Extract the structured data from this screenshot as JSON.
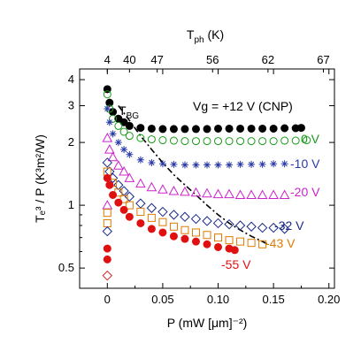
{
  "chart_data": {
    "type": "scatter",
    "annotation": "Vg = +12 V (CNP)",
    "xlabel": "P (mW [μm]⁻²)",
    "ylabel": "Tₑ³ / P (K³m²/W)",
    "x_top_label": "T",
    "x_top_label_sub": "ph",
    "x_top_label_unit": " (K)",
    "xlim": [
      -0.025,
      0.205
    ],
    "ylim": [
      0.4,
      4.5
    ],
    "y_scale": "log",
    "x_ticks": [
      "0",
      "0.05",
      "0.10",
      "0.15",
      "0.20"
    ],
    "x_tick_values": [
      0,
      0.05,
      0.1,
      0.15,
      0.2
    ],
    "y_ticks": [
      "0.5",
      "1",
      "2",
      "3",
      "4"
    ],
    "y_tick_values": [
      0.5,
      1,
      2,
      3,
      4
    ],
    "top_ticks": [
      "4",
      "40",
      "47",
      "56",
      "62",
      "67"
    ],
    "top_tick_positions": [
      0,
      0.02,
      0.045,
      0.095,
      0.145,
      0.195
    ],
    "series": [
      {
        "name": "+12 V",
        "marker": "circle-filled",
        "color": "#000000",
        "x": [
          0,
          0.002,
          0.005,
          0.01,
          0.015,
          0.02,
          0.03,
          0.04,
          0.05,
          0.06,
          0.07,
          0.08,
          0.09,
          0.1,
          0.11,
          0.12,
          0.13,
          0.14,
          0.15,
          0.16,
          0.17,
          0.175
        ],
        "y": [
          3.6,
          3.1,
          2.8,
          2.6,
          2.5,
          2.4,
          2.35,
          2.33,
          2.32,
          2.32,
          2.32,
          2.32,
          2.32,
          2.33,
          2.33,
          2.33,
          2.33,
          2.33,
          2.33,
          2.34,
          2.34,
          2.35
        ]
      },
      {
        "name": "0 V",
        "label": "0 V",
        "marker": "circle-open",
        "color": "#1a9a1a",
        "x": [
          0,
          0.002,
          0.005,
          0.01,
          0.015,
          0.02,
          0.03,
          0.04,
          0.05,
          0.06,
          0.07,
          0.08,
          0.09,
          0.1,
          0.11,
          0.12,
          0.13,
          0.14,
          0.15,
          0.16,
          0.17,
          0.18
        ],
        "y": [
          3.4,
          2.9,
          2.6,
          2.4,
          2.25,
          2.15,
          2.1,
          2.07,
          2.05,
          2.04,
          2.03,
          2.03,
          2.03,
          2.03,
          2.03,
          2.03,
          2.03,
          2.03,
          2.03,
          2.04,
          2.04,
          2.05
        ]
      },
      {
        "name": "-10 V",
        "label": "-10 V",
        "marker": "star",
        "color": "#2a3aa8",
        "x": [
          0,
          0.002,
          0.005,
          0.01,
          0.015,
          0.02,
          0.03,
          0.04,
          0.05,
          0.06,
          0.07,
          0.08,
          0.09,
          0.1,
          0.11,
          0.12,
          0.13,
          0.14,
          0.15,
          0.16
        ],
        "y": [
          2.9,
          2.5,
          2.2,
          2.0,
          1.85,
          1.75,
          1.65,
          1.6,
          1.58,
          1.57,
          1.56,
          1.56,
          1.56,
          1.56,
          1.56,
          1.57,
          1.57,
          1.57,
          1.58,
          1.58
        ]
      },
      {
        "name": "-20 V",
        "label": "-20 V",
        "marker": "triangle-open",
        "color": "#cc22cc",
        "x": [
          0,
          0.002,
          0.005,
          0.01,
          0.015,
          0.02,
          0.03,
          0.04,
          0.05,
          0.06,
          0.07,
          0.08,
          0.09,
          0.1,
          0.11,
          0.12,
          0.13,
          0.14,
          0.15,
          0.16
        ],
        "y": [
          2.1,
          1.85,
          1.7,
          1.55,
          1.45,
          1.35,
          1.27,
          1.22,
          1.19,
          1.17,
          1.16,
          1.15,
          1.14,
          1.13,
          1.13,
          1.12,
          1.12,
          1.12,
          1.12,
          1.12
        ]
      },
      {
        "name": "-32 V",
        "label": "-32 V",
        "marker": "diamond-open",
        "color": "#1a2a88",
        "x": [
          0,
          0.002,
          0.005,
          0.01,
          0.015,
          0.02,
          0.03,
          0.04,
          0.05,
          0.06,
          0.07,
          0.08,
          0.09,
          0.1,
          0.11,
          0.12,
          0.13,
          0.14,
          0.15,
          0.16
        ],
        "y": [
          1.6,
          1.45,
          1.35,
          1.25,
          1.17,
          1.1,
          1.02,
          0.97,
          0.93,
          0.9,
          0.88,
          0.86,
          0.84,
          0.82,
          0.81,
          0.8,
          0.79,
          0.78,
          0.78,
          0.77
        ]
      },
      {
        "name": "-43 V",
        "label": "-43 V",
        "marker": "square-open",
        "color": "#e07a00",
        "x": [
          0,
          0.005,
          0.01,
          0.015,
          0.02,
          0.03,
          0.04,
          0.05,
          0.06,
          0.07,
          0.08,
          0.09,
          0.1,
          0.11,
          0.12,
          0.13,
          0.14
        ],
        "y": [
          1.45,
          1.28,
          1.15,
          1.07,
          1.0,
          0.93,
          0.87,
          0.83,
          0.79,
          0.76,
          0.74,
          0.72,
          0.7,
          0.68,
          0.67,
          0.66,
          0.65
        ]
      },
      {
        "name": "-55 V",
        "label": "-55 V",
        "marker": "circle-filled",
        "color": "#e01010",
        "x": [
          0,
          0.002,
          0.005,
          0.01,
          0.015,
          0.02,
          0.03,
          0.04,
          0.05,
          0.06,
          0.07,
          0.08,
          0.09,
          0.1,
          0.11,
          0.115
        ],
        "y": [
          1.35,
          1.25,
          1.12,
          1.03,
          0.95,
          0.88,
          0.82,
          0.77,
          0.74,
          0.71,
          0.69,
          0.67,
          0.65,
          0.63,
          0.62,
          0.61
        ]
      },
      {
        "name": "",
        "marker": "mixed",
        "color": "#000000",
        "x": [
          0,
          0,
          0,
          0,
          0,
          0,
          0
        ],
        "y": [
          1.0,
          0.92,
          0.82,
          0.75,
          0.62,
          0.55,
          0.46
        ]
      }
    ],
    "t_bg_curve": {
      "label": "T",
      "label_sub": "BG",
      "x": [
        0.01,
        0.02,
        0.03,
        0.04,
        0.05,
        0.06,
        0.07,
        0.08,
        0.09,
        0.1,
        0.11,
        0.12,
        0.13,
        0.14,
        0.145
      ],
      "y": [
        3.0,
        2.55,
        2.15,
        1.85,
        1.6,
        1.4,
        1.25,
        1.12,
        1.0,
        0.9,
        0.82,
        0.76,
        0.71,
        0.67,
        0.65
      ]
    }
  }
}
